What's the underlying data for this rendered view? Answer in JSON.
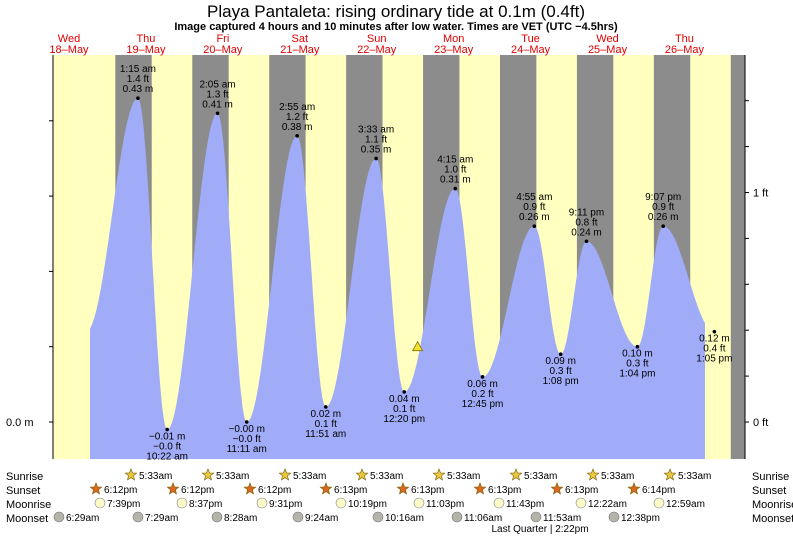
{
  "title": "Playa Pantaleta: rising  ordinary tide at 0.1m (0.4ft)",
  "subtitle": "Image captured 4 hours and 10 minutes after low water. Times are VET (UTC −4.5hrs)",
  "days": [
    {
      "name": "Wed",
      "date": "18–May"
    },
    {
      "name": "Thu",
      "date": "19–May"
    },
    {
      "name": "Fri",
      "date": "20–May"
    },
    {
      "name": "Sat",
      "date": "21–May"
    },
    {
      "name": "Sun",
      "date": "22–May"
    },
    {
      "name": "Mon",
      "date": "23–May"
    },
    {
      "name": "Tue",
      "date": "24–May"
    },
    {
      "name": "Wed",
      "date": "25–May"
    },
    {
      "name": "Thu",
      "date": "26–May"
    }
  ],
  "axis": {
    "left_zero": "0.0 m",
    "right_zero": "0 ft",
    "right_one": "1 ft"
  },
  "colors": {
    "tide_fill": "#a0acf8",
    "day_bg": "#ffffc0",
    "night_bg": "#8c8c8c",
    "day_label": "#e00000"
  },
  "chart_data": {
    "type": "area",
    "xlabel": "",
    "ylabel": "",
    "ylim_m": [
      -0.01,
      0.43
    ],
    "tides": [
      {
        "kind": "high",
        "time": "1:15 am",
        "ft": "1.4 ft",
        "m": "0.43 m",
        "value": 0.43
      },
      {
        "kind": "low",
        "time": "10:22 am",
        "ft": "−0.0 ft",
        "m": "−0.01 m",
        "value": -0.01
      },
      {
        "kind": "high",
        "time": "2:05 am",
        "ft": "1.3 ft",
        "m": "0.41 m",
        "value": 0.41
      },
      {
        "kind": "low",
        "time": "11:11 am",
        "ft": "−0.0 ft",
        "m": "−0.00 m",
        "value": 0.0
      },
      {
        "kind": "high",
        "time": "2:55 am",
        "ft": "1.2 ft",
        "m": "0.38 m",
        "value": 0.38
      },
      {
        "kind": "low",
        "time": "11:51 am",
        "ft": "0.1 ft",
        "m": "0.02 m",
        "value": 0.02
      },
      {
        "kind": "high",
        "time": "3:33 am",
        "ft": "1.1 ft",
        "m": "0.35 m",
        "value": 0.35
      },
      {
        "kind": "low",
        "time": "12:20 pm",
        "ft": "0.1 ft",
        "m": "0.04 m",
        "value": 0.04
      },
      {
        "kind": "high",
        "time": "4:15 am",
        "ft": "1.0 ft",
        "m": "0.31 m",
        "value": 0.31
      },
      {
        "kind": "low",
        "time": "12:45 pm",
        "ft": "0.2 ft",
        "m": "0.06 m",
        "value": 0.06
      },
      {
        "kind": "high",
        "time": "4:55 am",
        "ft": "0.9 ft",
        "m": "0.26 m",
        "value": 0.26
      },
      {
        "kind": "low",
        "time": "1:08 pm",
        "ft": "0.3 ft",
        "m": "0.09 m",
        "value": 0.09
      },
      {
        "kind": "high",
        "time": "9:11 pm",
        "ft": "0.8 ft",
        "m": "0.24 m",
        "value": 0.24
      },
      {
        "kind": "low",
        "time": "1:04 pm",
        "ft": "0.3 ft",
        "m": "0.10 m",
        "value": 0.1
      },
      {
        "kind": "high",
        "time": "9:07 pm",
        "ft": "0.9 ft",
        "m": "0.26 m",
        "value": 0.26
      },
      {
        "kind": "low",
        "time": "1:05 pm",
        "ft": "0.4 ft",
        "m": "0.12 m",
        "value": 0.12
      }
    ],
    "current_level_m": 0.1
  },
  "rows": {
    "labels": [
      "Sunrise",
      "Sunset",
      "Moonrise",
      "Moonset"
    ],
    "sunrise": [
      "5:33am",
      "5:33am",
      "5:33am",
      "5:33am",
      "5:33am",
      "5:33am",
      "5:33am",
      "5:33am"
    ],
    "sunset": [
      "6:12pm",
      "6:12pm",
      "6:12pm",
      "6:13pm",
      "6:13pm",
      "6:13pm",
      "6:13pm",
      "6:14pm"
    ],
    "moonrise": [
      "7:39pm",
      "8:37pm",
      "9:31pm",
      "10:19pm",
      "11:03pm",
      "11:43pm",
      "12:22am",
      "12:59am"
    ],
    "moonset": [
      "6:29am",
      "7:29am",
      "8:28am",
      "9:24am",
      "10:16am",
      "11:06am",
      "11:53am",
      "12:38pm"
    ],
    "moon_phase": "Last Quarter | 2:22pm"
  }
}
